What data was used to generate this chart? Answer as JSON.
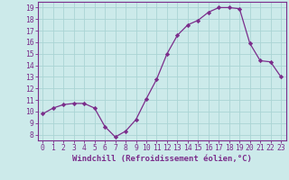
{
  "x": [
    0,
    1,
    2,
    3,
    4,
    5,
    6,
    7,
    8,
    9,
    10,
    11,
    12,
    13,
    14,
    15,
    16,
    17,
    18,
    19,
    20,
    21,
    22,
    23
  ],
  "y": [
    9.8,
    10.3,
    10.6,
    10.7,
    10.7,
    10.3,
    8.7,
    7.8,
    8.3,
    9.3,
    11.1,
    12.8,
    15.0,
    16.6,
    17.5,
    17.9,
    18.6,
    19.0,
    19.0,
    18.9,
    15.9,
    14.4,
    14.3,
    13.0
  ],
  "line_color": "#7b2d8b",
  "marker": "D",
  "marker_size": 2.2,
  "bg_color": "#cceaea",
  "grid_color": "#aad4d4",
  "axis_color": "#7b2d8b",
  "tick_color": "#7b2d8b",
  "xlabel": "Windchill (Refroidissement éolien,°C)",
  "xlabel_fontsize": 6.5,
  "tick_fontsize": 5.8,
  "ylim": [
    7.5,
    19.5
  ],
  "yticks": [
    8,
    9,
    10,
    11,
    12,
    13,
    14,
    15,
    16,
    17,
    18,
    19
  ],
  "xticks": [
    0,
    1,
    2,
    3,
    4,
    5,
    6,
    7,
    8,
    9,
    10,
    11,
    12,
    13,
    14,
    15,
    16,
    17,
    18,
    19,
    20,
    21,
    22,
    23
  ]
}
